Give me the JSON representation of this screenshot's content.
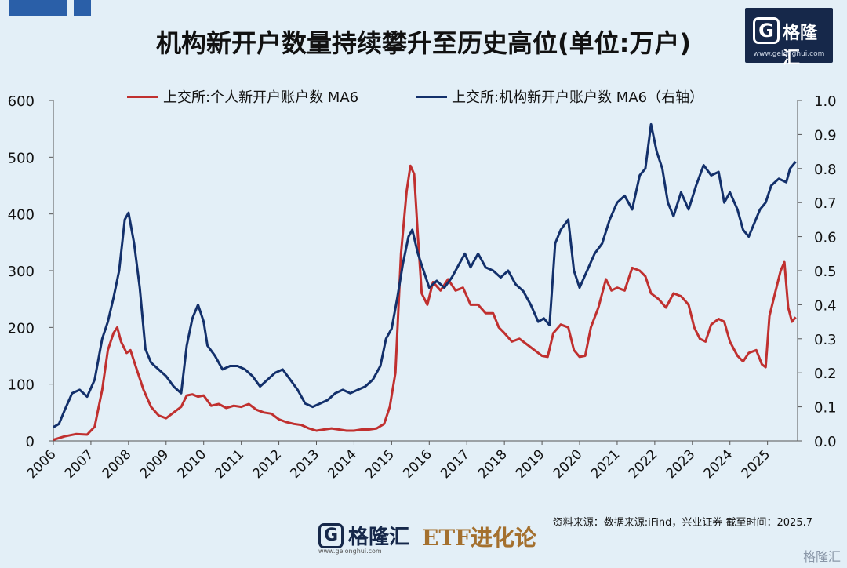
{
  "title": "机构新开户数量持续攀升至历史高位(单位:万户)",
  "logo": {
    "glyph": "G",
    "name": "格隆汇",
    "url": "www.gelonghui.com"
  },
  "footer": {
    "source": "资料来源：数据来源:iFind，兴业证券   截至时间：2025.7",
    "logo_glyph": "G",
    "logo_name": "格隆汇",
    "logo_url": "www.gelonghui.com",
    "brand": "ETF进化论",
    "watermark": "格隆汇"
  },
  "colors": {
    "individual": "#c0302f",
    "institution": "#13306b",
    "background": "#e3eff7"
  },
  "chart_data": {
    "type": "line",
    "title": "机构新开户数量持续攀升至历史高位(单位:万户)",
    "x_ticks": [
      "2006",
      "2007",
      "2008",
      "2009",
      "2010",
      "2011",
      "2012",
      "2013",
      "2014",
      "2015",
      "2016",
      "2017",
      "2018",
      "2019",
      "2020",
      "2021",
      "2022",
      "2023",
      "2024",
      "2025"
    ],
    "left_axis": {
      "ylim": [
        0,
        600
      ],
      "ticks": [
        "0",
        "100",
        "200",
        "300",
        "400",
        "500",
        "600"
      ]
    },
    "right_axis": {
      "ylim": [
        0,
        1.0
      ],
      "ticks": [
        "0.0",
        "0.1",
        "0.2",
        "0.3",
        "0.4",
        "0.5",
        "0.6",
        "0.7",
        "0.8",
        "0.9",
        "1.0"
      ]
    },
    "grid": false,
    "legend": "top",
    "series": [
      {
        "name": "上交所:个人新开户账户数 MA6",
        "axis": "left",
        "color": "#c0302f",
        "points": [
          [
            2006.0,
            2
          ],
          [
            2006.3,
            8
          ],
          [
            2006.6,
            12
          ],
          [
            2006.9,
            11
          ],
          [
            2007.1,
            25
          ],
          [
            2007.3,
            90
          ],
          [
            2007.45,
            160
          ],
          [
            2007.6,
            190
          ],
          [
            2007.7,
            200
          ],
          [
            2007.8,
            175
          ],
          [
            2007.95,
            155
          ],
          [
            2008.05,
            160
          ],
          [
            2008.2,
            130
          ],
          [
            2008.4,
            90
          ],
          [
            2008.6,
            60
          ],
          [
            2008.8,
            45
          ],
          [
            2009.0,
            40
          ],
          [
            2009.2,
            50
          ],
          [
            2009.4,
            60
          ],
          [
            2009.55,
            80
          ],
          [
            2009.7,
            82
          ],
          [
            2009.85,
            78
          ],
          [
            2010.0,
            80
          ],
          [
            2010.2,
            62
          ],
          [
            2010.4,
            65
          ],
          [
            2010.6,
            58
          ],
          [
            2010.8,
            62
          ],
          [
            2011.0,
            60
          ],
          [
            2011.2,
            65
          ],
          [
            2011.4,
            55
          ],
          [
            2011.6,
            50
          ],
          [
            2011.8,
            48
          ],
          [
            2012.0,
            38
          ],
          [
            2012.2,
            33
          ],
          [
            2012.4,
            30
          ],
          [
            2012.6,
            28
          ],
          [
            2012.8,
            22
          ],
          [
            2013.0,
            18
          ],
          [
            2013.2,
            20
          ],
          [
            2013.4,
            22
          ],
          [
            2013.6,
            20
          ],
          [
            2013.8,
            18
          ],
          [
            2014.0,
            18
          ],
          [
            2014.2,
            20
          ],
          [
            2014.4,
            20
          ],
          [
            2014.6,
            22
          ],
          [
            2014.8,
            30
          ],
          [
            2014.95,
            60
          ],
          [
            2015.1,
            120
          ],
          [
            2015.25,
            330
          ],
          [
            2015.4,
            440
          ],
          [
            2015.5,
            485
          ],
          [
            2015.6,
            470
          ],
          [
            2015.7,
            360
          ],
          [
            2015.8,
            260
          ],
          [
            2015.95,
            240
          ],
          [
            2016.1,
            280
          ],
          [
            2016.3,
            265
          ],
          [
            2016.5,
            285
          ],
          [
            2016.7,
            265
          ],
          [
            2016.9,
            270
          ],
          [
            2017.1,
            240
          ],
          [
            2017.3,
            240
          ],
          [
            2017.5,
            225
          ],
          [
            2017.7,
            225
          ],
          [
            2017.85,
            200
          ],
          [
            2018.0,
            190
          ],
          [
            2018.2,
            175
          ],
          [
            2018.4,
            180
          ],
          [
            2018.6,
            170
          ],
          [
            2018.8,
            160
          ],
          [
            2019.0,
            150
          ],
          [
            2019.15,
            148
          ],
          [
            2019.3,
            190
          ],
          [
            2019.5,
            205
          ],
          [
            2019.7,
            200
          ],
          [
            2019.85,
            160
          ],
          [
            2020.0,
            148
          ],
          [
            2020.15,
            150
          ],
          [
            2020.3,
            200
          ],
          [
            2020.5,
            235
          ],
          [
            2020.7,
            285
          ],
          [
            2020.85,
            265
          ],
          [
            2021.0,
            270
          ],
          [
            2021.2,
            265
          ],
          [
            2021.4,
            305
          ],
          [
            2021.6,
            300
          ],
          [
            2021.75,
            290
          ],
          [
            2021.9,
            260
          ],
          [
            2022.1,
            250
          ],
          [
            2022.3,
            235
          ],
          [
            2022.5,
            260
          ],
          [
            2022.7,
            255
          ],
          [
            2022.9,
            240
          ],
          [
            2023.05,
            200
          ],
          [
            2023.2,
            180
          ],
          [
            2023.35,
            175
          ],
          [
            2023.5,
            205
          ],
          [
            2023.7,
            215
          ],
          [
            2023.85,
            210
          ],
          [
            2024.0,
            175
          ],
          [
            2024.2,
            150
          ],
          [
            2024.35,
            140
          ],
          [
            2024.5,
            155
          ],
          [
            2024.7,
            160
          ],
          [
            2024.85,
            135
          ],
          [
            2024.95,
            130
          ],
          [
            2025.05,
            220
          ],
          [
            2025.2,
            260
          ],
          [
            2025.35,
            300
          ],
          [
            2025.45,
            315
          ],
          [
            2025.55,
            235
          ],
          [
            2025.65,
            210
          ],
          [
            2025.75,
            218
          ]
        ]
      },
      {
        "name": "上交所:机构新开户账户数 MA6（右轴）",
        "axis": "right",
        "color": "#13306b",
        "points": [
          [
            2006.0,
            0.04
          ],
          [
            2006.15,
            0.05
          ],
          [
            2006.3,
            0.09
          ],
          [
            2006.5,
            0.14
          ],
          [
            2006.7,
            0.15
          ],
          [
            2006.9,
            0.13
          ],
          [
            2007.1,
            0.18
          ],
          [
            2007.3,
            0.3
          ],
          [
            2007.45,
            0.35
          ],
          [
            2007.6,
            0.42
          ],
          [
            2007.75,
            0.5
          ],
          [
            2007.9,
            0.65
          ],
          [
            2008.0,
            0.67
          ],
          [
            2008.15,
            0.58
          ],
          [
            2008.3,
            0.45
          ],
          [
            2008.45,
            0.27
          ],
          [
            2008.6,
            0.23
          ],
          [
            2008.8,
            0.21
          ],
          [
            2009.0,
            0.19
          ],
          [
            2009.2,
            0.16
          ],
          [
            2009.4,
            0.14
          ],
          [
            2009.55,
            0.28
          ],
          [
            2009.7,
            0.36
          ],
          [
            2009.85,
            0.4
          ],
          [
            2010.0,
            0.35
          ],
          [
            2010.1,
            0.28
          ],
          [
            2010.3,
            0.25
          ],
          [
            2010.5,
            0.21
          ],
          [
            2010.7,
            0.22
          ],
          [
            2010.9,
            0.22
          ],
          [
            2011.1,
            0.21
          ],
          [
            2011.3,
            0.19
          ],
          [
            2011.5,
            0.16
          ],
          [
            2011.7,
            0.18
          ],
          [
            2011.9,
            0.2
          ],
          [
            2012.1,
            0.21
          ],
          [
            2012.3,
            0.18
          ],
          [
            2012.5,
            0.15
          ],
          [
            2012.7,
            0.11
          ],
          [
            2012.9,
            0.1
          ],
          [
            2013.1,
            0.11
          ],
          [
            2013.3,
            0.12
          ],
          [
            2013.5,
            0.14
          ],
          [
            2013.7,
            0.15
          ],
          [
            2013.9,
            0.14
          ],
          [
            2014.1,
            0.15
          ],
          [
            2014.3,
            0.16
          ],
          [
            2014.5,
            0.18
          ],
          [
            2014.7,
            0.22
          ],
          [
            2014.85,
            0.3
          ],
          [
            2015.0,
            0.33
          ],
          [
            2015.15,
            0.42
          ],
          [
            2015.3,
            0.52
          ],
          [
            2015.45,
            0.6
          ],
          [
            2015.55,
            0.62
          ],
          [
            2015.7,
            0.55
          ],
          [
            2015.85,
            0.5
          ],
          [
            2016.0,
            0.45
          ],
          [
            2016.2,
            0.47
          ],
          [
            2016.4,
            0.45
          ],
          [
            2016.6,
            0.48
          ],
          [
            2016.8,
            0.52
          ],
          [
            2016.95,
            0.55
          ],
          [
            2017.1,
            0.51
          ],
          [
            2017.3,
            0.55
          ],
          [
            2017.5,
            0.51
          ],
          [
            2017.7,
            0.5
          ],
          [
            2017.9,
            0.48
          ],
          [
            2018.1,
            0.5
          ],
          [
            2018.3,
            0.46
          ],
          [
            2018.5,
            0.44
          ],
          [
            2018.7,
            0.4
          ],
          [
            2018.9,
            0.35
          ],
          [
            2019.05,
            0.36
          ],
          [
            2019.2,
            0.34
          ],
          [
            2019.35,
            0.58
          ],
          [
            2019.5,
            0.62
          ],
          [
            2019.7,
            0.65
          ],
          [
            2019.85,
            0.5
          ],
          [
            2020.0,
            0.45
          ],
          [
            2020.2,
            0.5
          ],
          [
            2020.4,
            0.55
          ],
          [
            2020.6,
            0.58
          ],
          [
            2020.8,
            0.65
          ],
          [
            2021.0,
            0.7
          ],
          [
            2021.2,
            0.72
          ],
          [
            2021.4,
            0.68
          ],
          [
            2021.6,
            0.78
          ],
          [
            2021.75,
            0.8
          ],
          [
            2021.9,
            0.93
          ],
          [
            2022.05,
            0.85
          ],
          [
            2022.2,
            0.8
          ],
          [
            2022.35,
            0.7
          ],
          [
            2022.5,
            0.66
          ],
          [
            2022.7,
            0.73
          ],
          [
            2022.9,
            0.68
          ],
          [
            2023.1,
            0.75
          ],
          [
            2023.3,
            0.81
          ],
          [
            2023.5,
            0.78
          ],
          [
            2023.7,
            0.79
          ],
          [
            2023.85,
            0.7
          ],
          [
            2024.0,
            0.73
          ],
          [
            2024.2,
            0.68
          ],
          [
            2024.35,
            0.62
          ],
          [
            2024.5,
            0.6
          ],
          [
            2024.65,
            0.64
          ],
          [
            2024.8,
            0.68
          ],
          [
            2024.95,
            0.7
          ],
          [
            2025.1,
            0.75
          ],
          [
            2025.3,
            0.77
          ],
          [
            2025.5,
            0.76
          ],
          [
            2025.6,
            0.8
          ],
          [
            2025.75,
            0.82
          ]
        ]
      }
    ]
  }
}
